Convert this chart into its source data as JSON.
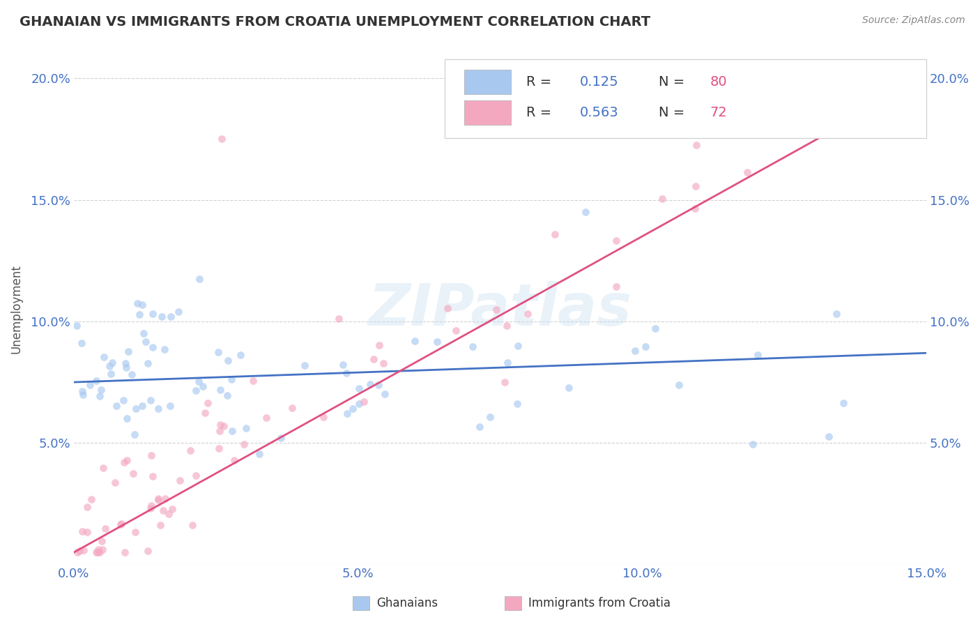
{
  "title": "GHANAIAN VS IMMIGRANTS FROM CROATIA UNEMPLOYMENT CORRELATION CHART",
  "source": "Source: ZipAtlas.com",
  "ylabel": "Unemployment",
  "watermark": "ZIPatlas",
  "series": [
    {
      "name": "Ghanaians",
      "R": 0.125,
      "N": 80,
      "color": "#a8c8f0",
      "line_color": "#4472c4",
      "alpha": 0.65
    },
    {
      "name": "Immigrants from Croatia",
      "R": 0.563,
      "N": 72,
      "color": "#f4a8c0",
      "line_color": "#e05080",
      "alpha": 0.65
    }
  ],
  "xlim": [
    0.0,
    0.15
  ],
  "ylim": [
    0.0,
    0.21
  ],
  "xticks": [
    0.0,
    0.05,
    0.1,
    0.15
  ],
  "xtick_labels": [
    "0.0%",
    "5.0%",
    "10.0%",
    "15.0%"
  ],
  "yticks": [
    0.05,
    0.1,
    0.15,
    0.2
  ],
  "ytick_labels": [
    "5.0%",
    "10.0%",
    "15.0%",
    "20.0%"
  ],
  "background_color": "#ffffff",
  "grid_color": "#cccccc",
  "title_color": "#333333",
  "axis_label_color": "#555555",
  "tick_label_color": "#4472c4",
  "legend_text_color": "#333333",
  "legend_R_color": "#4472c4",
  "legend_N_color": "#e05080",
  "ghanaian_line": [
    0.0,
    0.075,
    0.15,
    0.087
  ],
  "croatia_line": [
    0.0,
    0.005,
    0.15,
    0.2
  ]
}
